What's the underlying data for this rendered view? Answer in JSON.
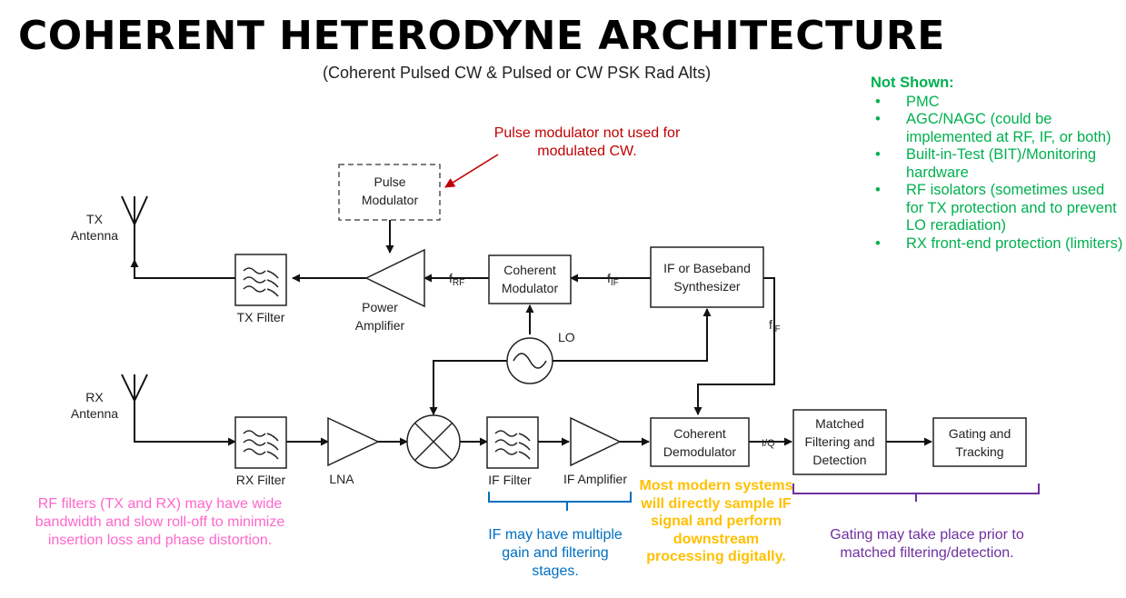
{
  "title": "COHERENT HETERODYNE ARCHITECTURE",
  "subtitle": "(Coherent Pulsed CW & Pulsed or CW PSK Rad Alts)",
  "not_shown": {
    "header": "Not Shown:",
    "items": [
      "PMC",
      "AGC/NAGC (could be implemented at RF, IF, or both)",
      "Built-in-Test (BIT)/Monitoring hardware",
      "RF isolators (sometimes used for TX protection and to prevent LO reradiation)",
      "RX front-end protection (limiters)"
    ]
  },
  "blocks": {
    "tx_antenna": [
      "TX",
      "Antenna"
    ],
    "rx_antenna": [
      "RX",
      "Antenna"
    ],
    "pulse_modulator": [
      "Pulse",
      "Modulator"
    ],
    "tx_filter": "TX Filter",
    "power_amplifier": [
      "Power",
      "Amplifier"
    ],
    "coherent_modulator": [
      "Coherent",
      "Modulator"
    ],
    "synthesizer": [
      "IF or Baseband",
      "Synthesizer"
    ],
    "lo": "LO",
    "rx_filter": "RX Filter",
    "lna": "LNA",
    "if_filter": "IF Filter",
    "if_amplifier": "IF Amplifier",
    "coherent_demodulator": [
      "Coherent",
      "Demodulator"
    ],
    "matched_filtering": [
      "Matched",
      "Filtering and",
      "Detection"
    ],
    "gating_tracking": [
      "Gating and",
      "Tracking"
    ]
  },
  "signals": {
    "f_rf": {
      "base": "f",
      "sub": "RF"
    },
    "f_if_top": {
      "base": "f",
      "sub": "IF"
    },
    "f_if_right": {
      "base": "f",
      "sub": "IF"
    },
    "iq": "I/Q"
  },
  "annotations": {
    "pulse_note": "Pulse modulator not used for modulated CW.",
    "rf_filter_note": "RF filters (TX and RX) may have wide bandwidth and slow roll-off to minimize insertion loss and phase distortion.",
    "if_note": "IF may have multiple gain and filtering stages.",
    "modern_note": "Most modern systems will directly sample IF signal and perform downstream processing digitally.",
    "gating_note": "Gating may take place prior to matched filtering/detection."
  },
  "colors": {
    "green": "#00b050",
    "red": "#c00000",
    "magenta": "#ff66cc",
    "blue": "#0070c0",
    "orange": "#ffc000",
    "purple": "#7030a0"
  }
}
